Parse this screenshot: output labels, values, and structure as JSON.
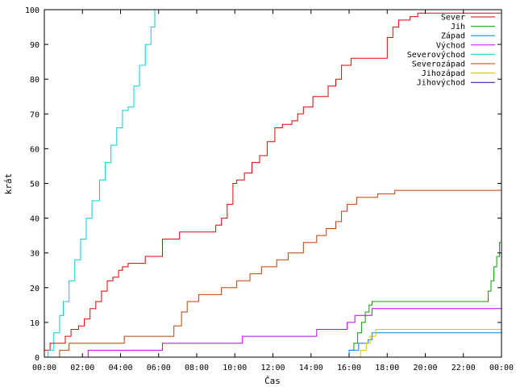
{
  "chart_data": {
    "type": "line",
    "xlabel": "Čas",
    "ylabel": "krát",
    "xlim": [
      0,
      24
    ],
    "ylim": [
      0,
      100
    ],
    "x_ticks": [
      0,
      2,
      4,
      6,
      8,
      10,
      12,
      14,
      16,
      18,
      20,
      22,
      24
    ],
    "x_tick_labels": [
      "00:00",
      "02:00",
      "04:00",
      "06:00",
      "08:00",
      "10:00",
      "12:00",
      "14:00",
      "16:00",
      "18:00",
      "20:00",
      "22:00",
      "00:00"
    ],
    "y_ticks": [
      0,
      10,
      20,
      30,
      40,
      50,
      60,
      70,
      80,
      90,
      100
    ],
    "y_tick_labels": [
      "0",
      "10",
      "20",
      "30",
      "40",
      "50",
      "60",
      "70",
      "80",
      "90",
      "100"
    ],
    "grid": false,
    "legend_position": "top-right",
    "series": [
      {
        "name": "Sever",
        "color": "#e00000",
        "x": [
          0,
          0.3,
          0.8,
          1.1,
          1.4,
          1.8,
          2.1,
          2.4,
          2.7,
          3.0,
          3.3,
          3.6,
          3.9,
          4.1,
          4.4,
          5.3,
          5.6,
          6.2,
          6.5,
          7.1,
          8.6,
          9.0,
          9.3,
          9.6,
          9.9,
          10.1,
          10.5,
          10.9,
          11.3,
          11.7,
          12.1,
          12.5,
          13.0,
          13.3,
          13.6,
          14.1,
          14.5,
          14.9,
          15.3,
          15.6,
          16.1,
          17.4,
          18.0,
          18.3,
          18.6,
          19.2,
          19.6,
          20.6,
          23.0,
          24
        ],
        "y": [
          2,
          4,
          4,
          6,
          8,
          9,
          11,
          14,
          16,
          19,
          22,
          23,
          25,
          26,
          27,
          29,
          29,
          34,
          34,
          36,
          36,
          38,
          40,
          44,
          50,
          51,
          53,
          56,
          58,
          62,
          66,
          67,
          68,
          70,
          72,
          75,
          75,
          78,
          80,
          84,
          86,
          86,
          92,
          95,
          97,
          98,
          99,
          99,
          99,
          99
        ]
      },
      {
        "name": "Jih",
        "color": "#00a000",
        "x": [
          0,
          15.95,
          16.0,
          16.25,
          16.45,
          16.65,
          16.85,
          17.05,
          17.2,
          19.3,
          23.05,
          23.3,
          23.45,
          23.6,
          23.75,
          23.9,
          24
        ],
        "y": [
          0,
          0,
          2,
          4,
          7,
          10,
          13,
          15,
          16,
          16,
          16,
          19,
          22,
          26,
          29,
          33,
          38
        ]
      },
      {
        "name": "Západ",
        "color": "#0080ff",
        "x": [
          0,
          16.0,
          16.5,
          17.0,
          17.2,
          24
        ],
        "y": [
          0,
          2,
          4,
          5,
          7,
          7
        ]
      },
      {
        "name": "Východ",
        "color": "#c000ff",
        "x": [
          0,
          2.3,
          3.5,
          6.2,
          7.0,
          10.4,
          12.6,
          14.3,
          15.9,
          16.3,
          17.2,
          24
        ],
        "y": [
          0,
          2,
          2,
          4,
          4,
          6,
          6,
          8,
          10,
          12,
          14,
          14
        ]
      },
      {
        "name": "Severovýchod",
        "color": "#00d0d0",
        "x": [
          0,
          0.2,
          0.5,
          0.8,
          1.0,
          1.3,
          1.6,
          1.9,
          2.2,
          2.5,
          2.9,
          3.2,
          3.5,
          3.8,
          4.1,
          4.4,
          4.7,
          5.0,
          5.3,
          5.6,
          5.8
        ],
        "y": [
          0,
          2,
          7,
          12,
          16,
          22,
          28,
          34,
          40,
          45,
          51,
          56,
          61,
          66,
          71,
          72,
          78,
          84,
          90,
          95,
          100
        ]
      },
      {
        "name": "Severozápad",
        "color": "#c04000",
        "x": [
          0,
          0.8,
          1.3,
          2.5,
          4.2,
          6.6,
          6.8,
          7.2,
          7.5,
          8.1,
          8.8,
          9.3,
          10.1,
          10.8,
          11.4,
          12.2,
          12.8,
          13.6,
          14.3,
          14.8,
          15.3,
          15.6,
          15.9,
          16.4,
          16.6,
          17.5,
          18.4,
          24
        ],
        "y": [
          0,
          2,
          4,
          4,
          6,
          6,
          9,
          13,
          16,
          18,
          18,
          20,
          22,
          24,
          26,
          28,
          30,
          33,
          35,
          37,
          39,
          42,
          44,
          46,
          46,
          47,
          48,
          48
        ]
      },
      {
        "name": "Jihozápad",
        "color": "#e0c000",
        "x": [
          0,
          16.6,
          16.9,
          17.1,
          17.4,
          24
        ],
        "y": [
          0,
          2,
          4,
          6,
          8,
          8
        ]
      },
      {
        "name": "Jihovýchod",
        "color": "#3000a0",
        "x": [
          0,
          24
        ],
        "y": [
          0,
          0
        ]
      }
    ]
  }
}
